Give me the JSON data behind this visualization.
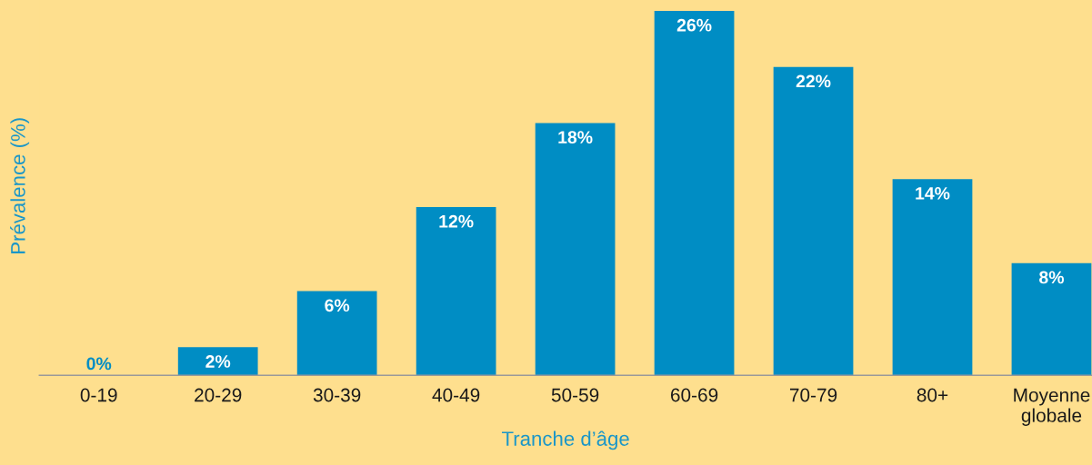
{
  "chart_data": {
    "type": "bar",
    "xlabel": "Tranche d’âge",
    "ylabel": "Prévalence (%)",
    "categories": [
      "0-19",
      "20-29",
      "30-39",
      "40-49",
      "50-59",
      "60-69",
      "70-79",
      "80+",
      "Moyenne\nglobale"
    ],
    "values": [
      0,
      2,
      6,
      12,
      18,
      26,
      22,
      14,
      8
    ],
    "color": "#008dc4",
    "value_labels": [
      "0%",
      "2%",
      "6%",
      "12%",
      "18%",
      "26%",
      "22%",
      "14%",
      "8%"
    ],
    "tick_labels": "x",
    "grid": false
  }
}
